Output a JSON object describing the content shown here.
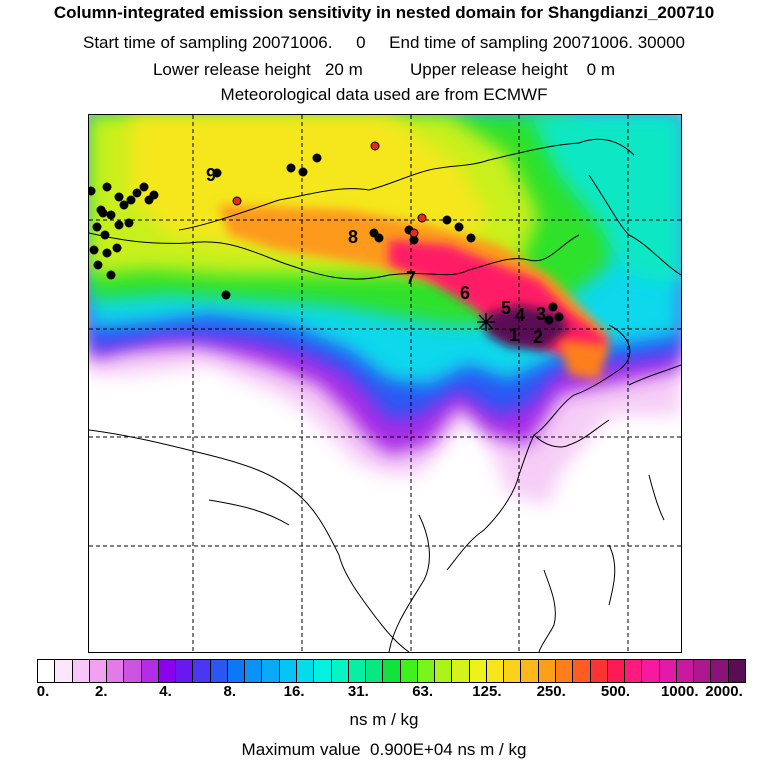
{
  "header": {
    "title": "Column-integrated emission sensitivity in nested domain for Shangdianzi_200710",
    "sampling_line": "Start time of sampling 20071006.     0     End time of sampling 20071006. 30000",
    "release_line": "Lower release height   20 m          Upper release height    0 m",
    "met_line": "Meteorological data used are from ECMWF"
  },
  "map": {
    "receptor_marker": "+",
    "day_labels": [
      "1",
      "2",
      "3",
      "4",
      "5",
      "6",
      "7",
      "8",
      "9"
    ]
  },
  "colorbar": {
    "tick_labels": [
      "0.",
      "2.",
      "4.",
      "8.",
      "16.",
      "31.",
      "63.",
      "125.",
      "250.",
      "500.",
      "1000.",
      "2000."
    ],
    "colors": [
      "#ffffff",
      "#fde6fd",
      "#f9c6f9",
      "#f2a0f2",
      "#e27ae7",
      "#cc55e0",
      "#b32de6",
      "#8a00ee",
      "#6a17f0",
      "#4b37f2",
      "#2b56f4",
      "#0b78f5",
      "#0a92f6",
      "#0aaaf7",
      "#07c4f7",
      "#05dceb",
      "#05f0e0",
      "#06f3c6",
      "#07efa2",
      "#09e880",
      "#12e23e",
      "#3ff21c",
      "#78f61b",
      "#acf21b",
      "#d4f21c",
      "#eef21c",
      "#f7e61c",
      "#fad11b",
      "#fcb81b",
      "#fd9f1a",
      "#fd7f1c",
      "#fd5c22",
      "#fe3434",
      "#fe1a55",
      "#ff1a80",
      "#f71a9e",
      "#e31aa8",
      "#c91a9f",
      "#ad188f",
      "#8a1279",
      "#5a0d55"
    ],
    "units": "ns m / kg",
    "max_value_text": "Maximum value  0.900E+04 ns m / kg"
  }
}
